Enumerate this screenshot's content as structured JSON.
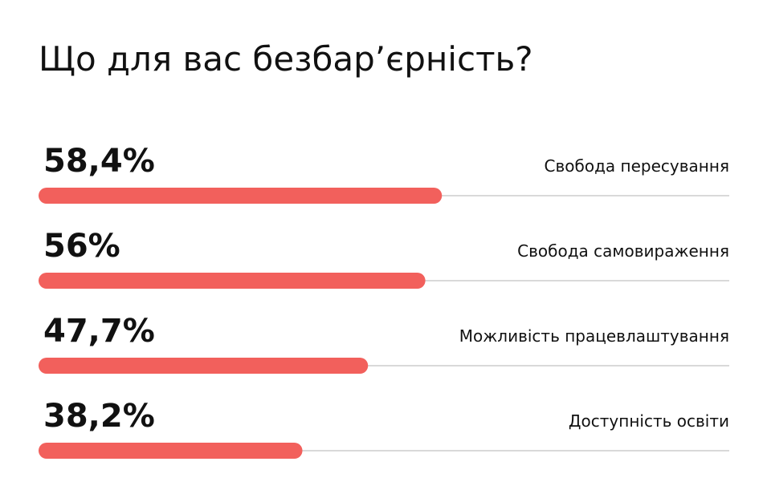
{
  "chart_data": {
    "type": "bar",
    "orientation": "horizontal",
    "title": "Що для вас безбар’єрність?",
    "categories": [
      "Свобода пересування",
      "Свобода самовираження",
      "Можливість працевлаштування",
      "Доступність освіти"
    ],
    "values": [
      58.4,
      56,
      47.7,
      38.2
    ],
    "value_labels": [
      "58,4%",
      "56%",
      "47,7%",
      "38,2%"
    ],
    "color": "#f2605c",
    "track_color": "#d9d9d9",
    "xlim": [
      0,
      100
    ]
  }
}
